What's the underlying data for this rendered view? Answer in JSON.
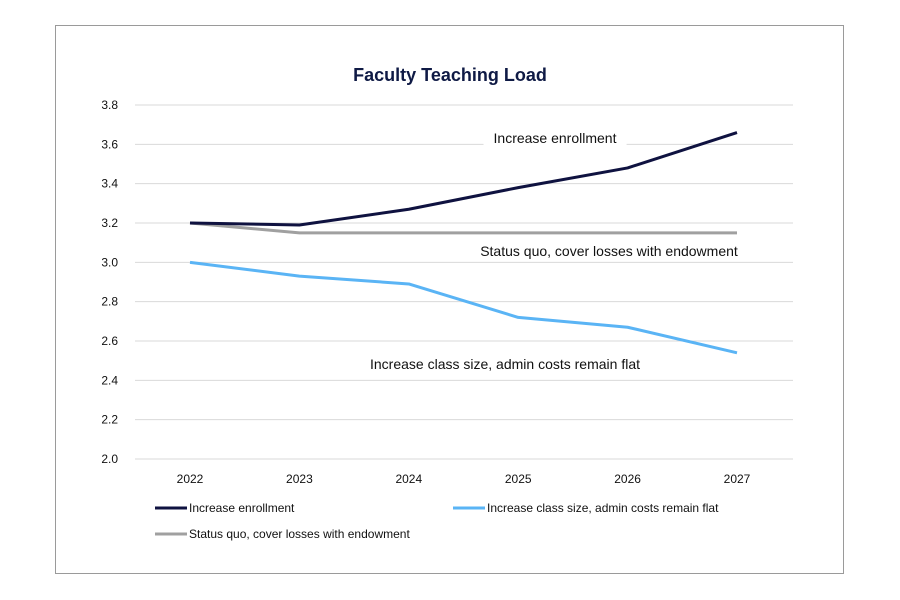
{
  "chart_data": {
    "type": "line",
    "title": "Faculty Teaching Load",
    "x": [
      "2022",
      "2023",
      "2024",
      "2025",
      "2026",
      "2027"
    ],
    "ylim": [
      2.0,
      3.8
    ],
    "yticks": [
      "2.0",
      "2.2",
      "2.4",
      "2.6",
      "2.8",
      "3.0",
      "3.2",
      "3.4",
      "3.6",
      "3.8"
    ],
    "grid": true,
    "legend": "bottom",
    "series": [
      {
        "name": "Increase enrollment",
        "color": "#0f1240",
        "values": [
          3.2,
          3.19,
          3.27,
          3.38,
          3.48,
          3.66
        ],
        "annotation": "Increase enrollment"
      },
      {
        "name": "Increase class size, admin costs remain flat",
        "color": "#5ab4f5",
        "values": [
          3.0,
          2.93,
          2.89,
          2.72,
          2.67,
          2.54
        ],
        "annotation": "Increase class size, admin costs remain flat"
      },
      {
        "name": "Status quo, cover losses with endowment",
        "color": "#a0a0a0",
        "values": [
          3.2,
          3.15,
          3.15,
          3.15,
          3.15,
          3.15
        ],
        "annotation": "Status quo, cover losses with endowment"
      }
    ]
  }
}
